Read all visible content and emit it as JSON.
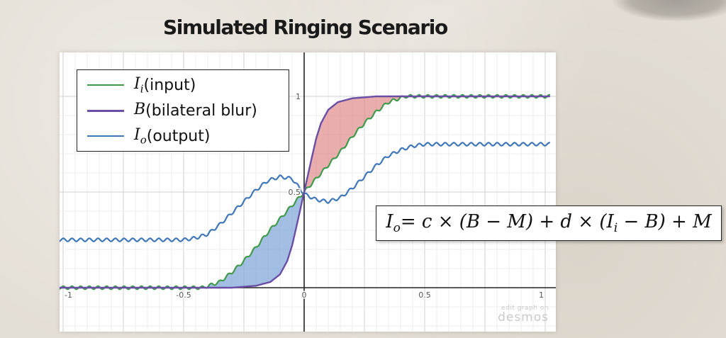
{
  "slide_title": "Simulated Ringing Scenario",
  "watermark": {
    "line1": "edit graph on",
    "line2": "desmos"
  },
  "formula": {
    "lhs": "I",
    "lhs_sub": "o",
    "rhs": " = c × (B − M) + d × (I",
    "rhs_sub": "i",
    "rhs_end": " − B) + M"
  },
  "colors": {
    "input": "#3f9a4b",
    "blur": "#6a4ea6",
    "output": "#3f77b8",
    "fill_above": "#e08a8a",
    "fill_below": "#7aa3d6",
    "grid_minor": "#ececec",
    "grid_major": "#cfcfcf",
    "axis": "#222222"
  },
  "chart_data": {
    "type": "line",
    "title": "",
    "xlabel": "",
    "ylabel": "",
    "xlim": [
      -1,
      1
    ],
    "ylim": [
      0,
      1
    ],
    "x_ticks": [
      {
        "v": -1,
        "label": "-1"
      },
      {
        "v": -0.5,
        "label": "-0.5"
      },
      {
        "v": 0,
        "label": "0"
      },
      {
        "v": 0.5,
        "label": "0.5"
      },
      {
        "v": 1,
        "label": "1"
      }
    ],
    "y_ticks": [
      {
        "v": 0.5,
        "label": "0.5"
      },
      {
        "v": 1,
        "label": "1"
      }
    ],
    "grid": true,
    "legend_position": "top-left",
    "legend": [
      {
        "symbol": "I",
        "sub": "i",
        "text": " (input)",
        "color_key": "input"
      },
      {
        "symbol": "B",
        "sub": "",
        "text": " (bilateral blur)",
        "color_key": "blur"
      },
      {
        "symbol": "I",
        "sub": "o",
        "text": " (output)",
        "color_key": "output"
      }
    ],
    "series": [
      {
        "key": "input",
        "x": [
          -1,
          -0.5,
          -0.42,
          -0.35,
          -0.3,
          -0.25,
          -0.2,
          -0.15,
          -0.1,
          -0.05,
          0,
          0.05,
          0.1,
          0.15,
          0.2,
          0.25,
          0.3,
          0.35,
          0.42,
          0.5,
          1
        ],
        "y": [
          0,
          0,
          0,
          0.03,
          0.08,
          0.14,
          0.21,
          0.29,
          0.36,
          0.43,
          0.5,
          0.57,
          0.64,
          0.71,
          0.79,
          0.86,
          0.92,
          0.97,
          1,
          1,
          1
        ]
      },
      {
        "key": "blur",
        "x": [
          -1,
          -0.3,
          -0.2,
          -0.14,
          -0.1,
          -0.07,
          -0.05,
          -0.03,
          0,
          0.03,
          0.05,
          0.07,
          0.1,
          0.14,
          0.2,
          0.3,
          1
        ],
        "y": [
          0,
          0,
          0.01,
          0.03,
          0.07,
          0.14,
          0.22,
          0.33,
          0.5,
          0.67,
          0.78,
          0.86,
          0.93,
          0.97,
          0.99,
          1,
          1
        ]
      },
      {
        "key": "output",
        "x": [
          -1,
          -0.5,
          -0.45,
          -0.4,
          -0.35,
          -0.3,
          -0.25,
          -0.2,
          -0.15,
          -0.1,
          -0.05,
          0,
          0.05,
          0.1,
          0.15,
          0.2,
          0.25,
          0.3,
          0.35,
          0.4,
          0.45,
          0.5,
          1
        ],
        "y": [
          0.25,
          0.25,
          0.26,
          0.28,
          0.33,
          0.39,
          0.45,
          0.51,
          0.56,
          0.58,
          0.57,
          0.49,
          0.46,
          0.45,
          0.47,
          0.52,
          0.58,
          0.64,
          0.69,
          0.72,
          0.74,
          0.75,
          0.75
        ]
      }
    ],
    "ripple": {
      "amplitude": 0.008,
      "period": 0.036
    },
    "shaded_regions": [
      {
        "between": [
          "blur",
          "input"
        ],
        "x_range": [
          0,
          0.5
        ],
        "color_key": "fill_above"
      },
      {
        "between": [
          "input",
          "blur"
        ],
        "x_range": [
          -0.5,
          0
        ],
        "color_key": "fill_below"
      }
    ]
  }
}
